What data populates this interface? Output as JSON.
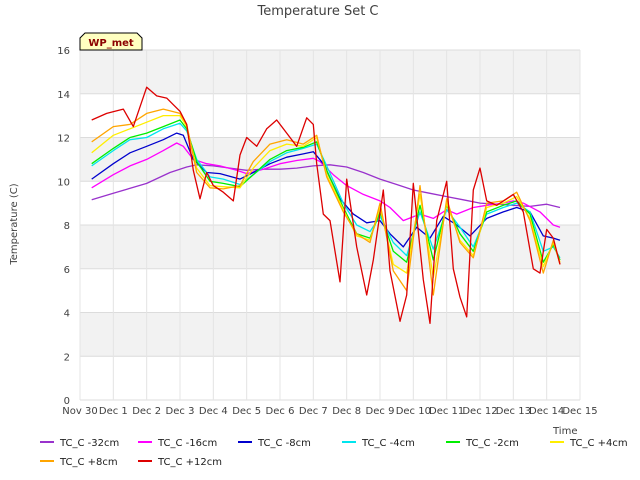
{
  "chart_data": {
    "type": "line",
    "title": "Temperature Set C",
    "xlabel": "Time",
    "ylabel": "Temperature (C)",
    "ylim": [
      0,
      16
    ],
    "yticks": [
      0,
      2,
      4,
      6,
      8,
      10,
      12,
      14,
      16
    ],
    "xlim": [
      0,
      15
    ],
    "xtick_labels": [
      "Nov 30",
      "Dec 1",
      "Dec 2",
      "Dec 3",
      "Dec 4",
      "Dec 5",
      "Dec 6",
      "Dec 7",
      "Dec 8",
      "Dec 9",
      "Dec 10",
      "Dec 11",
      "Dec 12",
      "Dec 13",
      "Dec 14",
      "Dec 15"
    ],
    "grid": true,
    "badge": "WP_met",
    "legend_position": "bottom",
    "series": [
      {
        "name": "TC_C -32cm",
        "color": "#9932cc",
        "x": [
          0.35,
          1,
          2,
          2.7,
          3.2,
          3.5,
          4,
          4.5,
          5,
          5.5,
          6,
          6.5,
          7,
          7.5,
          8,
          8.5,
          9,
          9.5,
          10,
          10.5,
          11,
          11.5,
          12,
          12.5,
          13,
          13.5,
          14,
          14.4
        ],
        "y": [
          9.15,
          9.45,
          9.9,
          10.4,
          10.65,
          10.75,
          10.7,
          10.6,
          10.5,
          10.55,
          10.55,
          10.6,
          10.7,
          10.75,
          10.65,
          10.4,
          10.1,
          9.85,
          9.6,
          9.45,
          9.3,
          9.15,
          9.0,
          8.95,
          8.9,
          8.85,
          8.95,
          8.8
        ]
      },
      {
        "name": "TC_C -16cm",
        "color": "#ff00ff",
        "x": [
          0.35,
          1,
          1.5,
          2,
          2.5,
          2.9,
          3.1,
          3.4,
          3.8,
          4.2,
          4.7,
          5,
          5.5,
          6,
          6.5,
          7,
          7.2,
          7.6,
          8,
          8.5,
          9,
          9.3,
          9.7,
          10.2,
          10.6,
          11,
          11.3,
          11.8,
          12.2,
          12.7,
          13,
          13.3,
          13.8,
          14.2,
          14.4
        ],
        "y": [
          9.7,
          10.3,
          10.7,
          11.0,
          11.4,
          11.75,
          11.6,
          11.0,
          10.8,
          10.7,
          10.5,
          10.35,
          10.55,
          10.8,
          10.95,
          11.05,
          10.9,
          10.3,
          9.8,
          9.4,
          9.1,
          8.8,
          8.2,
          8.5,
          8.3,
          8.7,
          8.5,
          8.8,
          8.9,
          9.0,
          9.1,
          9.0,
          8.6,
          8.0,
          7.9
        ]
      },
      {
        "name": "TC_C -8cm",
        "color": "#0000cd",
        "x": [
          0.35,
          1,
          1.5,
          2,
          2.5,
          2.9,
          3.1,
          3.4,
          3.8,
          4.2,
          4.8,
          5.2,
          5.7,
          6.2,
          6.7,
          7.0,
          7.3,
          7.8,
          8.2,
          8.6,
          9.0,
          9.3,
          9.7,
          10.1,
          10.5,
          10.9,
          11.3,
          11.7,
          12.2,
          12.7,
          13.1,
          13.5,
          13.9,
          14.2,
          14.4
        ],
        "y": [
          10.1,
          10.8,
          11.3,
          11.6,
          11.9,
          12.2,
          12.1,
          11.0,
          10.4,
          10.35,
          10.1,
          10.4,
          10.8,
          11.1,
          11.25,
          11.35,
          10.8,
          9.2,
          8.5,
          8.1,
          8.2,
          7.6,
          7.0,
          7.9,
          7.4,
          8.4,
          8.0,
          7.5,
          8.3,
          8.6,
          8.8,
          8.6,
          7.5,
          7.4,
          7.3
        ]
      },
      {
        "name": "TC_C -4cm",
        "color": "#00e5ee",
        "x": [
          0.35,
          1,
          1.5,
          2,
          2.5,
          3.0,
          3.2,
          3.5,
          3.9,
          4.3,
          4.8,
          5.2,
          5.7,
          6.2,
          6.7,
          7.1,
          7.4,
          7.9,
          8.3,
          8.7,
          9.0,
          9.4,
          9.8,
          10.2,
          10.6,
          11.0,
          11.4,
          11.8,
          12.2,
          12.7,
          13.1,
          13.5,
          13.9,
          14.2,
          14.4
        ],
        "y": [
          10.7,
          11.4,
          11.9,
          12.0,
          12.4,
          12.65,
          12.3,
          11.0,
          10.2,
          10.1,
          9.85,
          10.3,
          10.9,
          11.3,
          11.5,
          11.7,
          10.7,
          9.0,
          8.0,
          7.7,
          8.4,
          7.2,
          6.6,
          8.6,
          6.9,
          8.7,
          7.9,
          7.0,
          8.5,
          8.8,
          9.0,
          8.6,
          6.8,
          7.0,
          6.5
        ]
      },
      {
        "name": "TC_C -2cm",
        "color": "#00ee00",
        "x": [
          0.35,
          1,
          1.5,
          2,
          2.5,
          3.0,
          3.2,
          3.5,
          3.9,
          4.3,
          4.8,
          5.2,
          5.7,
          6.2,
          6.7,
          7.1,
          7.4,
          7.9,
          8.3,
          8.7,
          9.0,
          9.4,
          9.8,
          10.2,
          10.6,
          11.0,
          11.4,
          11.8,
          12.2,
          12.7,
          13.1,
          13.5,
          13.9,
          14.2,
          14.4
        ],
        "y": [
          10.8,
          11.5,
          12.0,
          12.2,
          12.5,
          12.8,
          12.4,
          10.9,
          10.0,
          9.9,
          9.75,
          10.3,
          11.0,
          11.4,
          11.55,
          11.8,
          10.5,
          8.8,
          7.6,
          7.4,
          8.6,
          6.8,
          6.3,
          8.9,
          6.4,
          8.9,
          7.6,
          6.8,
          8.6,
          8.9,
          9.1,
          8.5,
          6.3,
          7.1,
          6.4
        ]
      },
      {
        "name": "TC_C +4cm",
        "color": "#ffee00",
        "x": [
          0.35,
          1,
          1.5,
          2,
          2.5,
          3.0,
          3.2,
          3.5,
          3.9,
          4.3,
          4.8,
          5.2,
          5.7,
          6.2,
          6.7,
          7.1,
          7.4,
          7.9,
          8.3,
          8.7,
          9.0,
          9.4,
          9.8,
          10.2,
          10.6,
          11.0,
          11.4,
          11.8,
          12.2,
          12.7,
          13.1,
          13.5,
          13.9,
          14.2,
          14.4
        ],
        "y": [
          11.3,
          12.1,
          12.4,
          12.7,
          13.0,
          13.0,
          12.5,
          10.6,
          9.8,
          9.75,
          9.7,
          10.6,
          11.4,
          11.7,
          11.6,
          12.0,
          10.3,
          8.7,
          7.5,
          7.3,
          8.8,
          6.2,
          5.8,
          9.4,
          5.6,
          9.0,
          7.3,
          6.6,
          8.8,
          9.0,
          9.3,
          8.3,
          6.1,
          7.2,
          6.3
        ]
      },
      {
        "name": "TC_C +8cm",
        "color": "#ffa500",
        "x": [
          0.35,
          1,
          1.5,
          2,
          2.5,
          3.0,
          3.2,
          3.5,
          3.9,
          4.3,
          4.8,
          5.2,
          5.7,
          6.2,
          6.7,
          7.1,
          7.4,
          7.9,
          8.3,
          8.7,
          9.0,
          9.4,
          9.8,
          10.2,
          10.6,
          11.0,
          11.4,
          11.8,
          12.2,
          12.7,
          13.1,
          13.5,
          13.9,
          14.2,
          14.4
        ],
        "y": [
          11.8,
          12.5,
          12.6,
          13.1,
          13.3,
          13.1,
          12.6,
          10.4,
          9.7,
          9.65,
          9.8,
          10.9,
          11.7,
          11.9,
          11.7,
          12.1,
          10.2,
          8.6,
          7.6,
          7.2,
          9.0,
          5.9,
          5.0,
          9.8,
          4.8,
          9.2,
          7.2,
          6.5,
          9.0,
          9.1,
          9.5,
          8.2,
          5.8,
          7.3,
          6.2
        ]
      },
      {
        "name": "TC_C +12cm",
        "color": "#dd0000",
        "x": [
          0.35,
          0.8,
          1.3,
          1.6,
          2.0,
          2.3,
          2.6,
          2.8,
          3.0,
          3.2,
          3.4,
          3.6,
          3.8,
          4.0,
          4.3,
          4.6,
          4.8,
          5.0,
          5.3,
          5.6,
          5.9,
          6.2,
          6.5,
          6.8,
          7.0,
          7.1,
          7.3,
          7.5,
          7.8,
          8.0,
          8.3,
          8.6,
          8.8,
          9.1,
          9.3,
          9.6,
          9.8,
          10.0,
          10.3,
          10.5,
          10.7,
          11.0,
          11.2,
          11.4,
          11.6,
          11.8,
          12.0,
          12.2,
          12.5,
          12.8,
          13.0,
          13.3,
          13.6,
          13.8,
          14.0,
          14.2,
          14.4
        ],
        "y": [
          12.8,
          13.1,
          13.3,
          12.5,
          14.3,
          13.9,
          13.8,
          13.5,
          13.2,
          12.6,
          10.5,
          9.2,
          10.4,
          9.8,
          9.5,
          9.1,
          11.2,
          12.0,
          11.6,
          12.4,
          12.8,
          12.2,
          11.6,
          12.9,
          12.6,
          10.8,
          8.5,
          8.2,
          5.4,
          10.1,
          7.0,
          4.8,
          6.4,
          9.6,
          5.9,
          3.6,
          4.8,
          9.9,
          5.5,
          3.5,
          8.2,
          10.0,
          6.0,
          4.7,
          3.8,
          9.6,
          10.6,
          9.1,
          8.9,
          9.2,
          9.4,
          8.6,
          6.0,
          5.8,
          7.8,
          7.4,
          6.2
        ]
      }
    ]
  }
}
